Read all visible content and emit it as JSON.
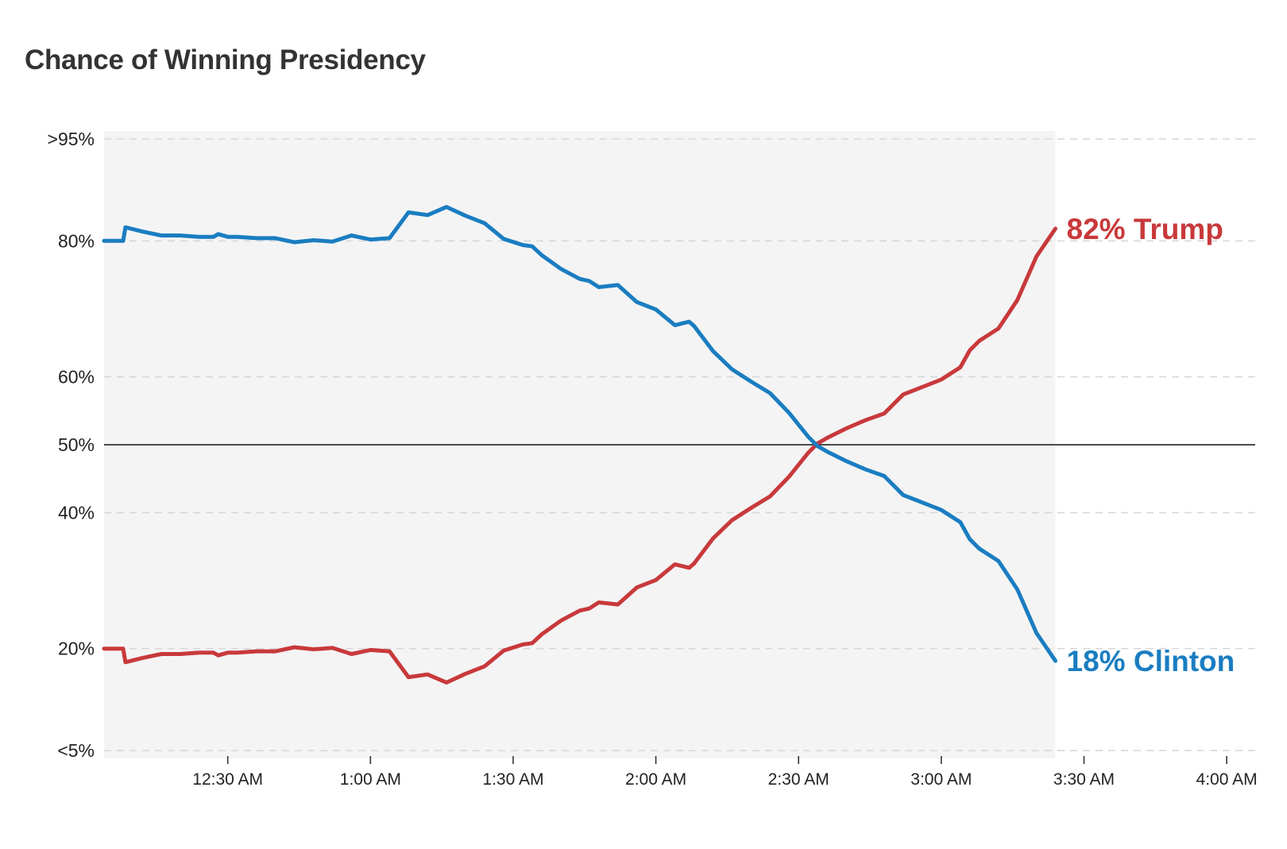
{
  "chart_data": {
    "type": "line",
    "title": "Chance of Winning Presidency",
    "xlabel": "",
    "ylabel": "",
    "x_ticks": [
      "12:30 AM",
      "1:00 AM",
      "1:30 AM",
      "2:00 AM",
      "2:30 AM",
      "3:00 AM",
      "3:30 AM",
      "4:00 AM"
    ],
    "x_tick_minutes": [
      30,
      60,
      90,
      120,
      150,
      180,
      210,
      240
    ],
    "xlim_minutes": [
      4,
      246
    ],
    "y_ticks": [
      {
        "value": 95,
        "label": ">95%"
      },
      {
        "value": 80,
        "label": "80%"
      },
      {
        "value": 60,
        "label": "60%"
      },
      {
        "value": 50,
        "label": "50%"
      },
      {
        "value": 40,
        "label": "40%"
      },
      {
        "value": 20,
        "label": "20%"
      },
      {
        "value": 5,
        "label": "<5%"
      }
    ],
    "ylim": [
      5,
      95
    ],
    "reference_line": 50,
    "shaded_region_minutes": [
      4,
      204
    ],
    "grid": true,
    "series": [
      {
        "name": "Trump",
        "color": "#c8393b",
        "end_label": "82% Trump",
        "minutes": [
          4,
          8,
          8.5,
          12,
          16,
          20,
          24,
          27,
          28,
          30,
          32,
          36,
          40,
          44,
          48,
          50,
          52,
          56,
          60,
          64,
          68,
          72,
          76,
          80,
          84,
          88,
          92,
          94,
          96,
          100,
          104,
          106,
          108,
          112,
          116,
          120,
          124,
          127,
          128,
          132,
          136,
          140,
          144,
          148,
          152,
          154,
          156,
          160,
          164,
          168,
          172,
          176,
          180,
          184,
          186,
          188,
          192,
          196,
          200,
          204
        ],
        "values": [
          20,
          20,
          18,
          18.6,
          19.2,
          19.2,
          19.4,
          19.4,
          19,
          19.4,
          19.4,
          19.6,
          19.6,
          20.2,
          19.9,
          20,
          20.1,
          19.2,
          19.8,
          19.6,
          15.8,
          16.2,
          15,
          16.3,
          17.4,
          19.7,
          20.6,
          20.8,
          22.1,
          24.1,
          25.6,
          25.9,
          26.8,
          26.5,
          29,
          30.1,
          32.4,
          31.9,
          32.5,
          36.2,
          38.9,
          40.7,
          42.4,
          45.3,
          48.8,
          50.2,
          51,
          52.4,
          53.6,
          54.6,
          57.4,
          58.5,
          59.6,
          61.4,
          63.9,
          65.3,
          67.1,
          71.3,
          77.7,
          81.8
        ]
      },
      {
        "name": "Clinton",
        "color": "#1a7dc1",
        "end_label": "18% Clinton",
        "minutes": [
          4,
          8,
          8.5,
          12,
          16,
          20,
          24,
          27,
          28,
          30,
          32,
          36,
          40,
          44,
          48,
          50,
          52,
          56,
          60,
          64,
          68,
          72,
          76,
          80,
          84,
          88,
          92,
          94,
          96,
          100,
          104,
          106,
          108,
          112,
          116,
          120,
          124,
          127,
          128,
          132,
          136,
          140,
          144,
          148,
          152,
          154,
          156,
          160,
          164,
          168,
          172,
          176,
          180,
          184,
          186,
          188,
          192,
          196,
          200,
          204
        ],
        "values": [
          80,
          80,
          82,
          81.4,
          80.8,
          80.8,
          80.6,
          80.6,
          81,
          80.6,
          80.6,
          80.4,
          80.4,
          79.8,
          80.1,
          80,
          79.9,
          80.8,
          80.2,
          80.4,
          84.2,
          83.8,
          85,
          83.7,
          82.6,
          80.3,
          79.4,
          79.2,
          77.9,
          75.9,
          74.4,
          74.1,
          73.2,
          73.5,
          71,
          69.9,
          67.6,
          68.1,
          67.5,
          63.8,
          61.1,
          59.3,
          57.6,
          54.7,
          51.2,
          49.8,
          49,
          47.6,
          46.4,
          45.4,
          42.6,
          41.5,
          40.4,
          38.6,
          36.1,
          34.7,
          32.9,
          28.7,
          22.3,
          18.2
        ]
      }
    ]
  }
}
